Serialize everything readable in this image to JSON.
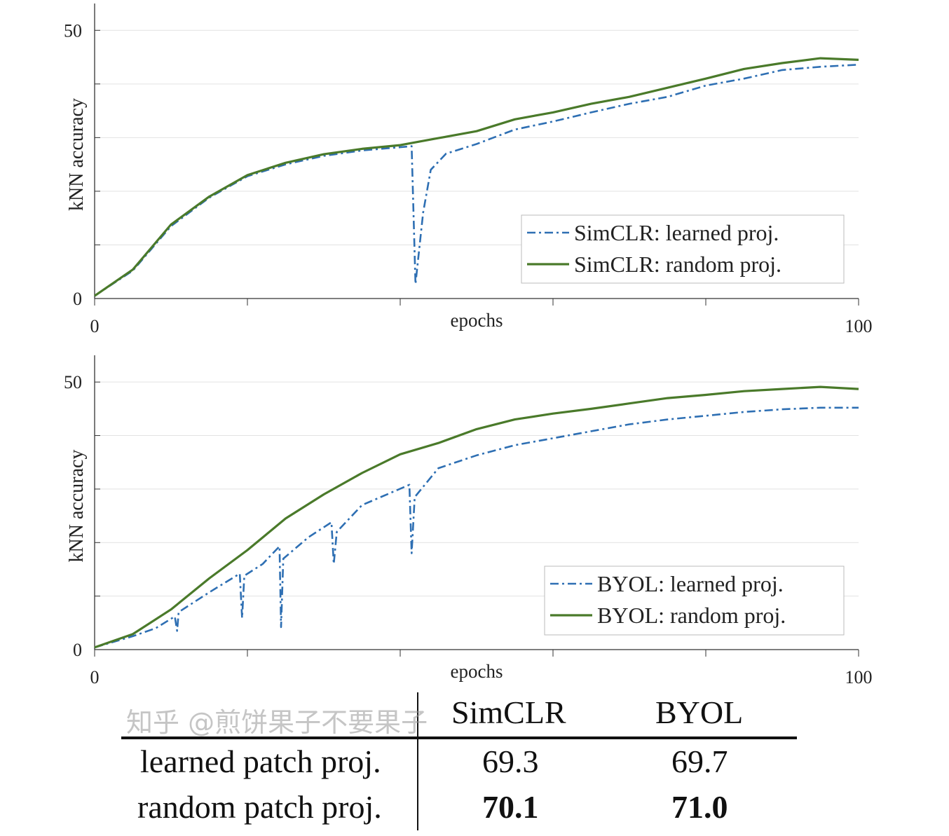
{
  "chart_data": [
    {
      "type": "line",
      "xlabel": "epochs",
      "ylabel": "kNN accuracy",
      "xlim": [
        0,
        100
      ],
      "ylim": [
        0,
        55
      ],
      "xticks": [
        0,
        20,
        40,
        60,
        80,
        100
      ],
      "xtick_labels": [
        "0",
        "100"
      ],
      "yticks": [
        0,
        10,
        20,
        30,
        40,
        50
      ],
      "ytick_labels": [
        "0",
        "50"
      ],
      "grid": "horizontal",
      "legend_position": "bottom-right",
      "series": [
        {
          "name": "SimCLR: learned proj.",
          "color": "#2e6fb3",
          "style": "dash-dot",
          "x": [
            0,
            5,
            10,
            15,
            20,
            25,
            30,
            35,
            40,
            41.5,
            42,
            43,
            44,
            46,
            50,
            55,
            60,
            65,
            70,
            75,
            80,
            85,
            90,
            95,
            100
          ],
          "y": [
            0.5,
            5.2,
            13.5,
            18.8,
            22.8,
            25,
            26.6,
            27.6,
            28.2,
            28.4,
            2.7,
            16,
            24,
            27,
            28.8,
            31.5,
            33,
            34.7,
            36.3,
            37.6,
            39.7,
            41,
            42.6,
            43.2,
            43.6
          ]
        },
        {
          "name": "SimCLR: random proj.",
          "color": "#4a7a2a",
          "style": "solid",
          "x": [
            0,
            5,
            10,
            15,
            20,
            25,
            30,
            35,
            40,
            45,
            50,
            55,
            60,
            65,
            70,
            75,
            80,
            85,
            90,
            95,
            100
          ],
          "y": [
            0.5,
            5.4,
            13.8,
            19,
            23,
            25.3,
            26.9,
            27.9,
            28.6,
            29.9,
            31.2,
            33.4,
            34.7,
            36.3,
            37.6,
            39.3,
            41,
            42.8,
            43.9,
            44.8,
            44.5
          ]
        }
      ]
    },
    {
      "type": "line",
      "xlabel": "epochs",
      "ylabel": "kNN accuracy",
      "xlim": [
        0,
        100
      ],
      "ylim": [
        0,
        55
      ],
      "xticks": [
        0,
        20,
        40,
        60,
        80,
        100
      ],
      "xtick_labels": [
        "0",
        "100"
      ],
      "yticks": [
        0,
        10,
        20,
        30,
        40,
        50
      ],
      "ytick_labels": [
        "0",
        "50"
      ],
      "grid": "horizontal",
      "legend_position": "bottom-right",
      "series": [
        {
          "name": "BYOL: learned proj.",
          "color": "#2e6fb3",
          "style": "dash-dot",
          "x": [
            0,
            5,
            8,
            10.5,
            10.8,
            11,
            15,
            19,
            19.3,
            19.6,
            22,
            24.2,
            24.4,
            24.7,
            28,
            31,
            31.3,
            31.7,
            35,
            41.2,
            41.5,
            41.9,
            45,
            50,
            55,
            60,
            65,
            70,
            75,
            80,
            85,
            90,
            95,
            100
          ],
          "y": [
            0.4,
            2.5,
            4,
            6.2,
            3.5,
            7,
            10.7,
            14.2,
            5.9,
            13.8,
            16,
            19.3,
            4.2,
            17,
            21,
            23.8,
            16,
            22,
            27,
            30.8,
            18,
            28.5,
            33.9,
            36.3,
            38.2,
            39.5,
            40.8,
            42.1,
            43,
            43.7,
            44.4,
            44.9,
            45.2,
            45.2
          ]
        },
        {
          "name": "BYOL: random proj.",
          "color": "#4a7a2a",
          "style": "solid",
          "x": [
            0,
            5,
            10,
            15,
            20,
            25,
            30,
            35,
            40,
            45,
            50,
            55,
            60,
            65,
            70,
            75,
            80,
            85,
            90,
            95,
            100
          ],
          "y": [
            0.4,
            2.9,
            7.5,
            13.3,
            18.6,
            24.5,
            29,
            33,
            36.5,
            38.6,
            41.2,
            43,
            44.1,
            45,
            46,
            47,
            47.6,
            48.3,
            48.7,
            49.1,
            48.7
          ]
        }
      ]
    }
  ],
  "table": {
    "headers": [
      "SimCLR",
      "BYOL"
    ],
    "rows": [
      {
        "label": "learned patch proj.",
        "simclr": "69.3",
        "byol": "69.7"
      },
      {
        "label": "random patch proj.",
        "simclr": "70.1",
        "byol": "71.0"
      }
    ]
  },
  "watermark": "知乎 @煎饼果子不要果子"
}
